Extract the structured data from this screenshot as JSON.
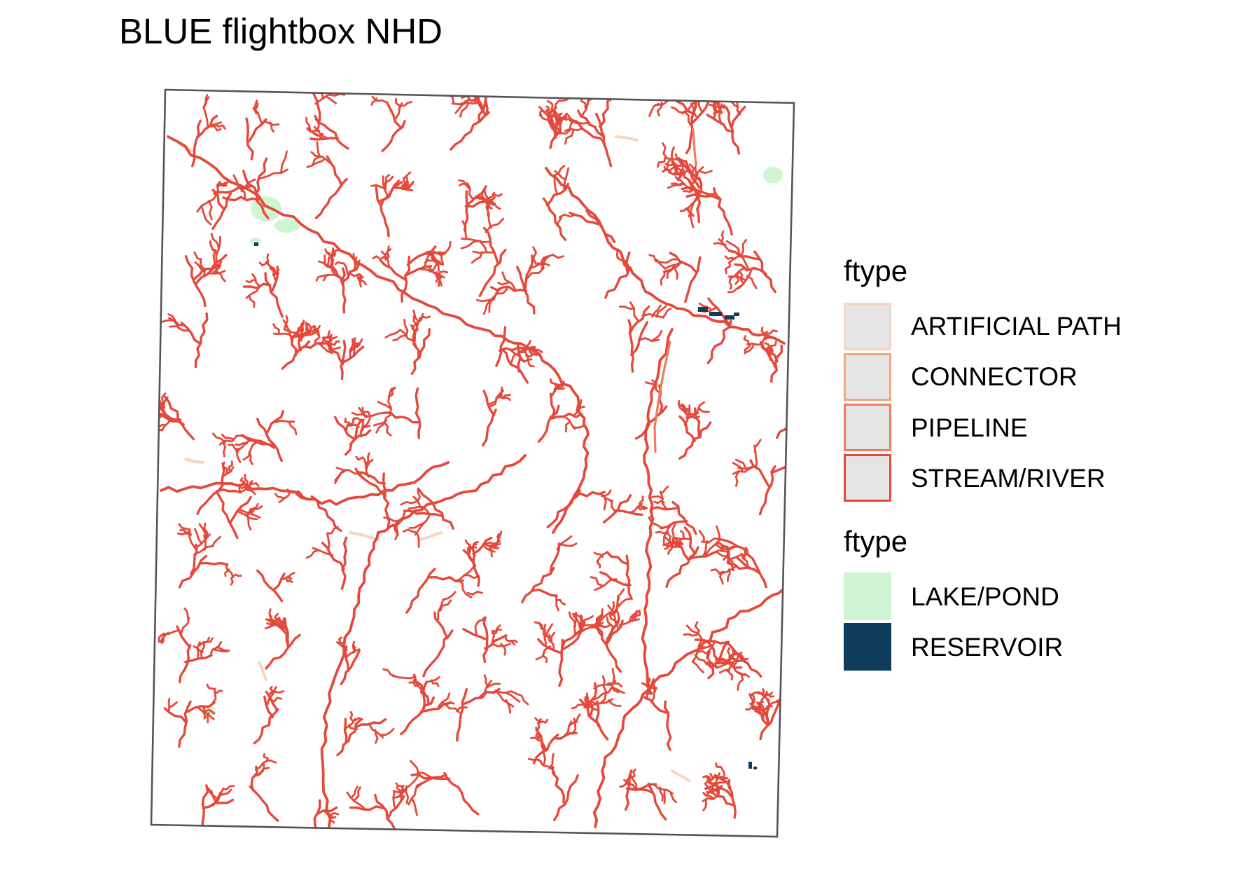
{
  "title": "BLUE flightbox NHD",
  "map": {
    "outline_color": "#555555",
    "stream_color": "#E4493B",
    "lake_color": "#D0F5D2",
    "reservoir_color": "#0E3D5C"
  },
  "legend_lines": {
    "title": "ftype",
    "items": [
      {
        "label": "ARTIFICIAL PATH",
        "color": "#F7D5BC"
      },
      {
        "label": "CONNECTOR",
        "color": "#F2A682"
      },
      {
        "label": "PIPELINE",
        "color": "#EC7E5E"
      },
      {
        "label": "STREAM/RIVER",
        "color": "#E4493B"
      }
    ]
  },
  "legend_polygons": {
    "title": "ftype",
    "items": [
      {
        "label": "LAKE/POND",
        "color": "#D0F5D2"
      },
      {
        "label": "RESERVOIR",
        "color": "#0E3D5C"
      }
    ]
  }
}
